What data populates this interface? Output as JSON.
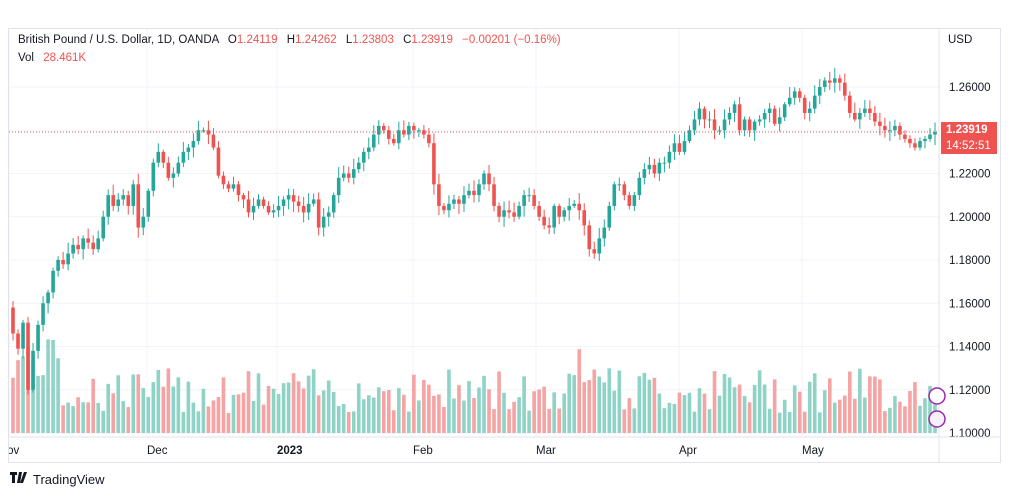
{
  "legend": {
    "symbol": "British Pound / U.S. Dollar, 1D, OANDA",
    "open_label": "O",
    "open": "1.24119",
    "high_label": "H",
    "high": "1.24262",
    "low_label": "L",
    "low": "1.23803",
    "close_label": "C",
    "close": "1.23919",
    "change": "−0.00201 (−0.16%)",
    "vol_label": "Vol",
    "vol": "28.461K"
  },
  "currency": "USD",
  "last_price": "1.23919",
  "countdown": "14:52:51",
  "footer": {
    "brand": "TradingView"
  },
  "colors": {
    "up": "#26a69a",
    "down": "#ef5350",
    "vol_up": "#8fd3c7",
    "vol_down": "#f5a3a3"
  },
  "chart_data": {
    "type": "candlestick",
    "y_axis": {
      "ticks": [
        "1.26000",
        "1.24000",
        "1.22000",
        "1.20000",
        "1.18000",
        "1.16000",
        "1.14000",
        "1.12000",
        "1.10000"
      ],
      "ylim": [
        1.1,
        1.27
      ]
    },
    "x_axis": {
      "ticks": [
        "Nov",
        "Dec",
        "2023",
        "Feb",
        "Mar",
        "Apr",
        "May"
      ]
    },
    "grid": true,
    "close_prices": [
      1.146,
      1.139,
      1.151,
      1.12,
      1.138,
      1.15,
      1.16,
      1.165,
      1.175,
      1.18,
      1.178,
      1.183,
      1.187,
      1.185,
      1.19,
      1.188,
      1.185,
      1.19,
      1.2,
      1.21,
      1.205,
      1.208,
      1.21,
      1.205,
      1.215,
      1.195,
      1.2,
      1.212,
      1.225,
      1.23,
      1.225,
      1.218,
      1.22,
      1.225,
      1.23,
      1.232,
      1.235,
      1.24,
      1.24,
      1.238,
      1.232,
      1.219,
      1.215,
      1.213,
      1.215,
      1.21,
      1.208,
      1.202,
      1.205,
      1.208,
      1.205,
      1.202,
      1.203,
      1.205,
      1.208,
      1.21,
      1.207,
      1.205,
      1.202,
      1.206,
      1.208,
      1.195,
      1.2,
      1.202,
      1.21,
      1.218,
      1.22,
      1.218,
      1.222,
      1.225,
      1.23,
      1.232,
      1.238,
      1.242,
      1.24,
      1.236,
      1.234,
      1.24,
      1.238,
      1.242,
      1.24,
      1.24,
      1.238,
      1.234,
      1.215,
      1.205,
      1.203,
      1.206,
      1.208,
      1.206,
      1.21,
      1.212,
      1.21,
      1.215,
      1.22,
      1.215,
      1.205,
      1.2,
      1.203,
      1.202,
      1.2,
      1.205,
      1.21,
      1.21,
      1.205,
      1.2,
      1.196,
      1.195,
      1.205,
      1.2,
      1.203,
      1.205,
      1.206,
      1.203,
      1.196,
      1.185,
      1.183,
      1.19,
      1.195,
      1.205,
      1.215,
      1.215,
      1.21,
      1.205,
      1.21,
      1.218,
      1.222,
      1.224,
      1.22,
      1.225,
      1.225,
      1.23,
      1.234,
      1.23,
      1.235,
      1.24,
      1.245,
      1.25,
      1.245,
      1.245,
      1.24,
      1.24,
      1.245,
      1.248,
      1.252,
      1.24,
      1.245,
      1.24,
      1.244,
      1.245,
      1.248,
      1.25,
      1.243,
      1.246,
      1.252,
      1.255,
      1.258,
      1.255,
      1.248,
      1.25,
      1.256,
      1.26,
      1.263,
      1.262,
      1.264,
      1.262,
      1.256,
      1.248,
      1.245,
      1.248,
      1.25,
      1.248,
      1.244,
      1.242,
      1.24,
      1.24,
      1.242,
      1.238,
      1.236,
      1.234,
      1.232,
      1.235,
      1.236,
      1.238,
      1.2392
    ],
    "volume_series": "Vol"
  }
}
